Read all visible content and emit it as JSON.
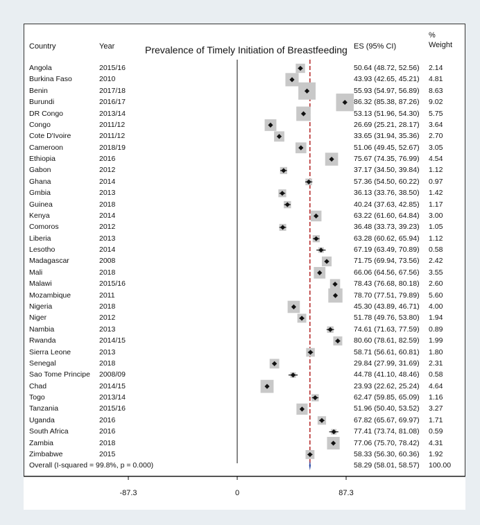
{
  "chart_data": {
    "type": "forest",
    "title": "Prevalence of Timely Initiation of Breastfeeding",
    "columns": {
      "country": "Country",
      "year": "Year",
      "es": "ES (95% CI)",
      "weight_line1": "%",
      "weight_line2": "Weight"
    },
    "x_ticks": [
      -87.3,
      0,
      87.3
    ],
    "x_tick_labels": [
      "-87.3",
      "0",
      "87.3"
    ],
    "overall_reference": 58.29,
    "studies": [
      {
        "country": "Angola",
        "year": "2015/16",
        "es": 50.64,
        "lo": 48.72,
        "hi": 52.56,
        "es_text": "50.64 (48.72, 52.56)",
        "weight": 2.14,
        "weight_text": "2.14"
      },
      {
        "country": "Burkina Faso",
        "year": "2010",
        "es": 43.93,
        "lo": 42.65,
        "hi": 45.21,
        "es_text": "43.93 (42.65, 45.21)",
        "weight": 4.81,
        "weight_text": "4.81"
      },
      {
        "country": "Benin",
        "year": "2017/18",
        "es": 55.93,
        "lo": 54.97,
        "hi": 56.89,
        "es_text": "55.93 (54.97, 56.89)",
        "weight": 8.63,
        "weight_text": "8.63"
      },
      {
        "country": "Burundi",
        "year": "2016/17",
        "es": 86.32,
        "lo": 85.38,
        "hi": 87.26,
        "es_text": "86.32 (85.38, 87.26)",
        "weight": 9.02,
        "weight_text": "9.02"
      },
      {
        "country": "DR Congo",
        "year": "2013/14",
        "es": 53.13,
        "lo": 51.96,
        "hi": 54.3,
        "es_text": "53.13 (51.96, 54.30)",
        "weight": 5.75,
        "weight_text": "5.75"
      },
      {
        "country": "Congo",
        "year": "2011/12",
        "es": 26.69,
        "lo": 25.21,
        "hi": 28.17,
        "es_text": "26.69 (25.21, 28.17)",
        "weight": 3.64,
        "weight_text": "3.64"
      },
      {
        "country": "Cote D'Ivoire",
        "year": "2011/12",
        "es": 33.65,
        "lo": 31.94,
        "hi": 35.36,
        "es_text": "33.65 (31.94, 35.36)",
        "weight": 2.7,
        "weight_text": "2.70"
      },
      {
        "country": "Cameroon",
        "year": "2018/19",
        "es": 51.06,
        "lo": 49.45,
        "hi": 52.67,
        "es_text": "51.06 (49.45, 52.67)",
        "weight": 3.05,
        "weight_text": "3.05"
      },
      {
        "country": "Ethiopia",
        "year": "2016",
        "es": 75.67,
        "lo": 74.35,
        "hi": 76.99,
        "es_text": "75.67 (74.35, 76.99)",
        "weight": 4.54,
        "weight_text": "4.54"
      },
      {
        "country": "Gabon",
        "year": "2012",
        "es": 37.17,
        "lo": 34.5,
        "hi": 39.84,
        "es_text": "37.17 (34.50, 39.84)",
        "weight": 1.12,
        "weight_text": "1.12"
      },
      {
        "country": "Ghana",
        "year": "2014",
        "es": 57.36,
        "lo": 54.5,
        "hi": 60.22,
        "es_text": "57.36 (54.50, 60.22)",
        "weight": 0.97,
        "weight_text": "0.97"
      },
      {
        "country": "Gmbia",
        "year": "2013",
        "es": 36.13,
        "lo": 33.76,
        "hi": 38.5,
        "es_text": "36.13 (33.76, 38.50)",
        "weight": 1.42,
        "weight_text": "1.42"
      },
      {
        "country": "Guinea",
        "year": "2018",
        "es": 40.24,
        "lo": 37.63,
        "hi": 42.85,
        "es_text": "40.24 (37.63, 42.85)",
        "weight": 1.17,
        "weight_text": "1.17"
      },
      {
        "country": "Kenya",
        "year": "2014",
        "es": 63.22,
        "lo": 61.6,
        "hi": 64.84,
        "es_text": "63.22 (61.60, 64.84)",
        "weight": 3.0,
        "weight_text": "3.00"
      },
      {
        "country": "Comoros",
        "year": "2012",
        "es": 36.48,
        "lo": 33.73,
        "hi": 39.23,
        "es_text": "36.48 (33.73, 39.23)",
        "weight": 1.05,
        "weight_text": "1.05"
      },
      {
        "country": "Liberia",
        "year": "2013",
        "es": 63.28,
        "lo": 60.62,
        "hi": 65.94,
        "es_text": "63.28 (60.62, 65.94)",
        "weight": 1.12,
        "weight_text": "1.12"
      },
      {
        "country": "Lesotho",
        "year": "2014",
        "es": 67.19,
        "lo": 63.49,
        "hi": 70.89,
        "es_text": "67.19 (63.49, 70.89)",
        "weight": 0.58,
        "weight_text": "0.58"
      },
      {
        "country": "Madagascar",
        "year": "2008",
        "es": 71.75,
        "lo": 69.94,
        "hi": 73.56,
        "es_text": "71.75 (69.94, 73.56)",
        "weight": 2.42,
        "weight_text": "2.42"
      },
      {
        "country": "Mali",
        "year": "2018",
        "es": 66.06,
        "lo": 64.56,
        "hi": 67.56,
        "es_text": "66.06 (64.56, 67.56)",
        "weight": 3.55,
        "weight_text": "3.55"
      },
      {
        "country": "Malawi",
        "year": "2015/16",
        "es": 78.43,
        "lo": 76.68,
        "hi": 80.18,
        "es_text": "78.43 (76.68, 80.18)",
        "weight": 2.6,
        "weight_text": "2.60"
      },
      {
        "country": "Mozambique",
        "year": "2011",
        "es": 78.7,
        "lo": 77.51,
        "hi": 79.89,
        "es_text": "78.70 (77.51, 79.89)",
        "weight": 5.6,
        "weight_text": "5.60"
      },
      {
        "country": "Nigeria",
        "year": "2018",
        "es": 45.3,
        "lo": 43.89,
        "hi": 46.71,
        "es_text": "45.30 (43.89, 46.71)",
        "weight": 4.0,
        "weight_text": "4.00"
      },
      {
        "country": "Niger",
        "year": "2012",
        "es": 51.78,
        "lo": 49.76,
        "hi": 53.8,
        "es_text": "51.78 (49.76, 53.80)",
        "weight": 1.94,
        "weight_text": "1.94"
      },
      {
        "country": "Nambia",
        "year": "2013",
        "es": 74.61,
        "lo": 71.63,
        "hi": 77.59,
        "es_text": "74.61 (71.63, 77.59)",
        "weight": 0.89,
        "weight_text": "0.89"
      },
      {
        "country": "Rwanda",
        "year": "2014/15",
        "es": 80.6,
        "lo": 78.61,
        "hi": 82.59,
        "es_text": "80.60 (78.61, 82.59)",
        "weight": 1.99,
        "weight_text": "1.99"
      },
      {
        "country": "Sierra Leone",
        "year": "2013",
        "es": 58.71,
        "lo": 56.61,
        "hi": 60.81,
        "es_text": "58.71 (56.61, 60.81)",
        "weight": 1.8,
        "weight_text": "1.80"
      },
      {
        "country": "Senegal",
        "year": "2018",
        "es": 29.84,
        "lo": 27.99,
        "hi": 31.69,
        "es_text": "29.84 (27.99, 31.69)",
        "weight": 2.31,
        "weight_text": "2.31"
      },
      {
        "country": "Sao Tome Principe",
        "year": "2008/09",
        "es": 44.78,
        "lo": 41.1,
        "hi": 48.46,
        "es_text": "44.78 (41.10, 48.46)",
        "weight": 0.58,
        "weight_text": "0.58"
      },
      {
        "country": "Chad",
        "year": "2014/15",
        "es": 23.93,
        "lo": 22.62,
        "hi": 25.24,
        "es_text": "23.93 (22.62, 25.24)",
        "weight": 4.64,
        "weight_text": "4.64"
      },
      {
        "country": "Togo",
        "year": "2013/14",
        "es": 62.47,
        "lo": 59.85,
        "hi": 65.09,
        "es_text": "62.47 (59.85, 65.09)",
        "weight": 1.16,
        "weight_text": "1.16"
      },
      {
        "country": "Tanzania",
        "year": "2015/16",
        "es": 51.96,
        "lo": 50.4,
        "hi": 53.52,
        "es_text": "51.96 (50.40, 53.52)",
        "weight": 3.27,
        "weight_text": "3.27"
      },
      {
        "country": "Uganda",
        "year": "2016",
        "es": 67.82,
        "lo": 65.67,
        "hi": 69.97,
        "es_text": "67.82 (65.67, 69.97)",
        "weight": 1.71,
        "weight_text": "1.71"
      },
      {
        "country": "South Africa",
        "year": "2016",
        "es": 77.41,
        "lo": 73.74,
        "hi": 81.08,
        "es_text": "77.41 (73.74, 81.08)",
        "weight": 0.59,
        "weight_text": "0.59"
      },
      {
        "country": "Zambia",
        "year": "2018",
        "es": 77.06,
        "lo": 75.7,
        "hi": 78.42,
        "es_text": "77.06 (75.70, 78.42)",
        "weight": 4.31,
        "weight_text": "4.31"
      },
      {
        "country": "Zimbabwe",
        "year": "2015",
        "es": 58.33,
        "lo": 56.3,
        "hi": 60.36,
        "es_text": "58.33 (56.30, 60.36)",
        "weight": 1.92,
        "weight_text": "1.92"
      }
    ],
    "overall": {
      "label": "Overall  (I-squared = 99.8%, p = 0.000)",
      "es": 58.29,
      "lo": 58.01,
      "hi": 58.57,
      "es_text": "58.29 (58.01, 58.57)",
      "weight_text": "100.00"
    },
    "colors": {
      "box": "#c8c8c8",
      "point": "#111111",
      "reference_line": "#b22222",
      "overall_diamond": "#1f3fa0",
      "axis": "#111111"
    }
  }
}
